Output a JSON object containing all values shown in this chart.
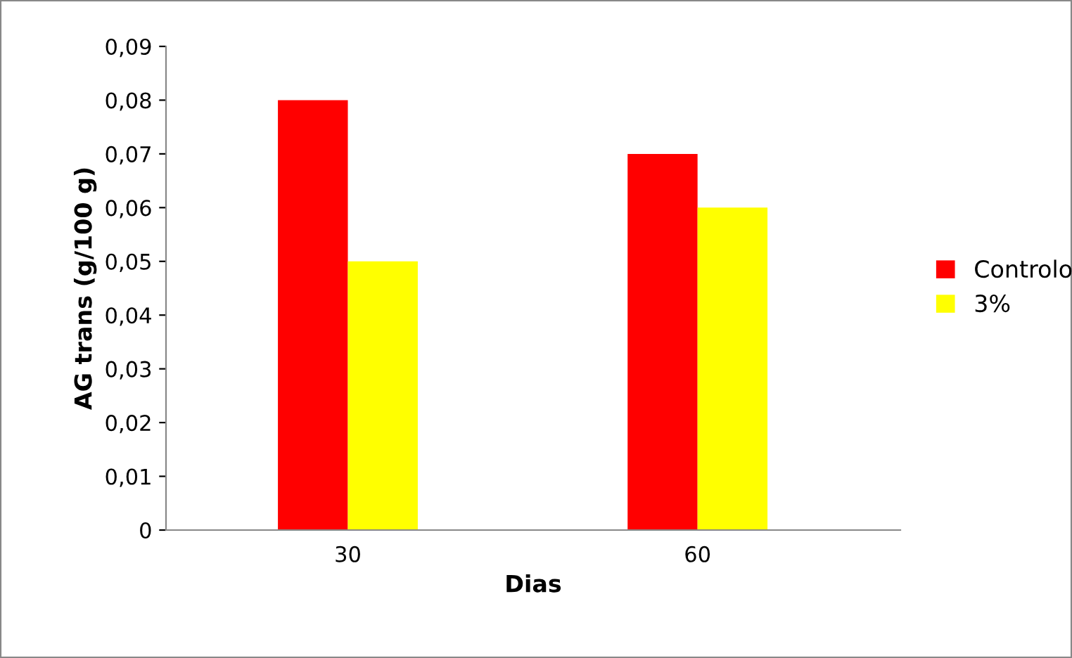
{
  "chart_data": {
    "type": "bar",
    "xlabel": "Dias",
    "ylabel": "AG trans (g/100 g)",
    "categories": [
      "30",
      "60"
    ],
    "series": [
      {
        "name": "Controlo",
        "color": "#ff0000",
        "values": [
          0.08,
          0.07
        ]
      },
      {
        "name": "3%",
        "color": "#ffff00",
        "values": [
          0.05,
          0.06
        ]
      }
    ],
    "ylim": [
      0,
      0.09
    ],
    "yticks": [
      0,
      {
        "value": 0.01,
        "label": "0,01"
      },
      {
        "value": 0.02,
        "label": "0,02"
      },
      {
        "value": 0.03,
        "label": "0,03"
      },
      {
        "value": 0.04,
        "label": "0,04"
      },
      {
        "value": 0.05,
        "label": "0,05"
      },
      {
        "value": 0.06,
        "label": "0,06"
      },
      {
        "value": 0.07,
        "label": "0,07"
      },
      {
        "value": 0.08,
        "label": "0,08"
      },
      {
        "value": 0.09,
        "label": "0,09"
      }
    ],
    "grid": false,
    "legend": "right"
  }
}
